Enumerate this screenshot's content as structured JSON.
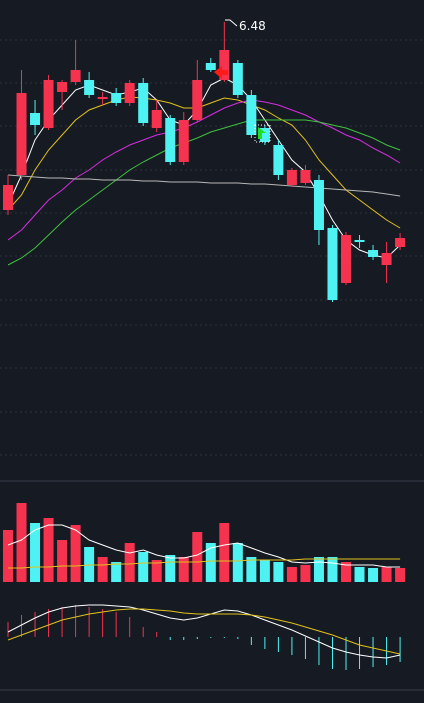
{
  "chart_data": [
    {
      "type": "candlestick",
      "up_color": "#f5334f",
      "down_color": "#4ef2f2",
      "ylim": [
        4.24,
        6.59
      ],
      "candles": [
        {
          "open": 5.54,
          "high": 5.715,
          "low": 5.515,
          "close": 5.665
        },
        {
          "open": 5.715,
          "high": 6.24,
          "low": 5.69,
          "close": 6.125
        },
        {
          "open": 6.025,
          "high": 6.09,
          "low": 5.915,
          "close": 5.965
        },
        {
          "open": 5.95,
          "high": 6.215,
          "low": 5.94,
          "close": 6.19
        },
        {
          "open": 6.13,
          "high": 6.19,
          "low": 6.04,
          "close": 6.18
        },
        {
          "open": 6.18,
          "high": 6.39,
          "low": 6.165,
          "close": 6.24
        },
        {
          "open": 6.19,
          "high": 6.23,
          "low": 6.1,
          "close": 6.115
        },
        {
          "open": 6.095,
          "high": 6.13,
          "low": 6.065,
          "close": 6.105
        },
        {
          "open": 6.125,
          "high": 6.15,
          "low": 6.06,
          "close": 6.075
        },
        {
          "open": 6.075,
          "high": 6.19,
          "low": 6.06,
          "close": 6.175
        },
        {
          "open": 6.175,
          "high": 6.2,
          "low": 5.96,
          "close": 5.975
        },
        {
          "open": 5.95,
          "high": 6.09,
          "low": 5.93,
          "close": 6.04
        },
        {
          "open": 6.0,
          "high": 6.015,
          "low": 5.765,
          "close": 5.78
        },
        {
          "open": 5.78,
          "high": 6.03,
          "low": 5.765,
          "close": 5.99
        },
        {
          "open": 5.99,
          "high": 6.29,
          "low": 5.98,
          "close": 6.19
        },
        {
          "open": 6.275,
          "high": 6.3,
          "low": 6.23,
          "close": 6.24
        },
        {
          "open": 6.19,
          "high": 6.48,
          "low": 6.18,
          "close": 6.34
        },
        {
          "open": 6.275,
          "high": 6.29,
          "low": 6.1,
          "close": 6.115
        },
        {
          "open": 6.115,
          "high": 6.14,
          "low": 5.9,
          "close": 5.915
        },
        {
          "open": 5.95,
          "high": 5.965,
          "low": 5.865,
          "close": 5.88
        },
        {
          "open": 5.865,
          "high": 5.89,
          "low": 5.69,
          "close": 5.715
        },
        {
          "open": 5.665,
          "high": 5.75,
          "low": 5.655,
          "close": 5.74
        },
        {
          "open": 5.675,
          "high": 5.765,
          "low": 5.665,
          "close": 5.74
        },
        {
          "open": 5.69,
          "high": 5.715,
          "low": 5.365,
          "close": 5.44
        },
        {
          "open": 5.45,
          "high": 5.465,
          "low": 5.08,
          "close": 5.09
        },
        {
          "open": 5.175,
          "high": 5.43,
          "low": 5.165,
          "close": 5.415
        },
        {
          "open": 5.39,
          "high": 5.415,
          "low": 5.35,
          "close": 5.38
        },
        {
          "open": 5.34,
          "high": 5.365,
          "low": 5.29,
          "close": 5.305
        },
        {
          "open": 5.265,
          "high": 5.38,
          "low": 5.175,
          "close": 5.325
        },
        {
          "open": 5.355,
          "high": 5.425,
          "low": 5.34,
          "close": 5.4
        }
      ],
      "series": [
        {
          "color": "#ffffff",
          "values": [
            5.565,
            5.715,
            5.89,
            5.99,
            6.065,
            6.14,
            6.165,
            6.14,
            6.115,
            6.13,
            6.15,
            6.09,
            5.99,
            5.965,
            6.04,
            6.165,
            6.2,
            6.165,
            6.09,
            5.99,
            5.89,
            5.79,
            5.73,
            5.615,
            5.49,
            5.39,
            5.34,
            5.315,
            5.3,
            5.365
          ]
        },
        {
          "color": "#e3c21c",
          "values": [
            5.54,
            5.615,
            5.74,
            5.84,
            5.915,
            5.99,
            6.04,
            6.065,
            6.09,
            6.105,
            6.1,
            6.09,
            6.075,
            6.05,
            6.05,
            6.075,
            6.1,
            6.09,
            6.065,
            6.04,
            6.0,
            5.965,
            5.89,
            5.79,
            5.715,
            5.64,
            5.59,
            5.54,
            5.49,
            5.45
          ]
        },
        {
          "color": "#d62ee0",
          "values": [
            5.39,
            5.44,
            5.515,
            5.59,
            5.64,
            5.7,
            5.74,
            5.79,
            5.83,
            5.865,
            5.89,
            5.915,
            5.93,
            5.95,
            5.98,
            6.015,
            6.05,
            6.075,
            6.09,
            6.08,
            6.065,
            6.04,
            6.015,
            5.98,
            5.95,
            5.915,
            5.89,
            5.85,
            5.815,
            5.775
          ]
        },
        {
          "color": "#3fc23f",
          "values": [
            5.265,
            5.3,
            5.35,
            5.415,
            5.48,
            5.54,
            5.59,
            5.64,
            5.69,
            5.74,
            5.78,
            5.815,
            5.85,
            5.875,
            5.9,
            5.93,
            5.95,
            5.97,
            5.99,
            5.99,
            5.99,
            5.99,
            5.99,
            5.98,
            5.965,
            5.95,
            5.925,
            5.9,
            5.865,
            5.84
          ]
        },
        {
          "color": "#b8b8b8",
          "values": [
            5.715,
            5.71,
            5.705,
            5.7,
            5.7,
            5.695,
            5.695,
            5.69,
            5.69,
            5.69,
            5.685,
            5.685,
            5.68,
            5.68,
            5.68,
            5.675,
            5.675,
            5.675,
            5.67,
            5.67,
            5.665,
            5.66,
            5.655,
            5.65,
            5.645,
            5.64,
            5.635,
            5.63,
            5.62,
            5.61
          ]
        }
      ]
    },
    {
      "type": "bar",
      "ylim": [
        0,
        100
      ],
      "values": [
        52,
        79,
        59,
        64,
        42,
        57,
        35,
        25,
        20,
        39,
        30,
        22,
        27,
        25,
        50,
        39,
        59,
        39,
        25,
        22,
        20,
        15,
        17,
        25,
        25,
        20,
        15,
        14,
        15,
        14
      ],
      "series": [
        {
          "color": "#ffffff",
          "values": [
            37,
            42,
            52,
            57,
            57,
            52,
            42,
            37,
            32,
            29,
            32,
            27,
            24,
            24,
            27,
            34,
            37,
            39,
            34,
            29,
            25,
            20,
            19,
            20,
            19,
            17,
            17,
            17,
            15,
            15
          ]
        },
        {
          "color": "#e3c21c",
          "values": [
            14,
            14,
            15,
            15,
            16,
            16,
            17,
            17,
            18,
            18,
            19,
            19,
            20,
            20,
            20,
            21,
            21,
            21,
            22,
            22,
            22,
            22,
            23,
            23,
            23,
            23,
            23,
            23,
            23,
            23
          ]
        }
      ]
    },
    {
      "type": "macd",
      "up_color": "#f5334f",
      "down_color": "#4ef2f2",
      "ylim": [
        -53,
        45
      ],
      "values": [
        15,
        22,
        25,
        28,
        30,
        32,
        30,
        28,
        25,
        20,
        10,
        5,
        -3,
        -3,
        -2,
        -1,
        -1,
        -2,
        -8,
        -12,
        -15,
        -18,
        -22,
        -28,
        -32,
        -33,
        -32,
        -30,
        -28,
        -25
      ],
      "series": [
        {
          "color": "#ffffff",
          "values": [
            5,
            12,
            19,
            25,
            29,
            31,
            32,
            32,
            31,
            30,
            27,
            23,
            19,
            17,
            19,
            23,
            27,
            26,
            22,
            17,
            12,
            7,
            1,
            -5,
            -11,
            -15,
            -18,
            -20,
            -21,
            -18
          ]
        },
        {
          "color": "#e3c21c",
          "values": [
            -3,
            2,
            7,
            12,
            17,
            20,
            23,
            25,
            27,
            28,
            28,
            27,
            26,
            24,
            23,
            23,
            23,
            23,
            22,
            20,
            17,
            14,
            10,
            6,
            2,
            -3,
            -8,
            -11,
            -14,
            -17
          ]
        }
      ]
    }
  ]
}
